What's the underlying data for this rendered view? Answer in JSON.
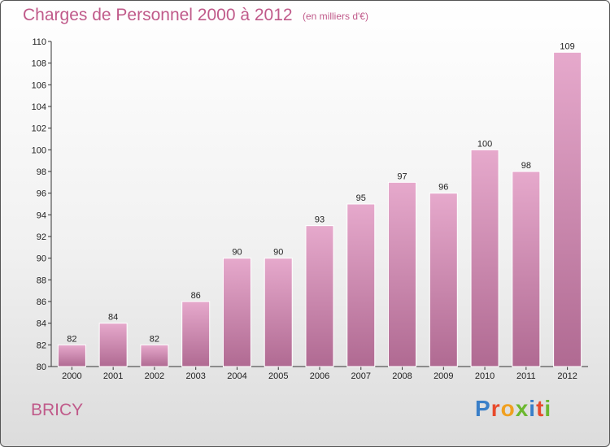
{
  "page": {
    "title": "Charges de Personnel 2000 à 2012",
    "subtitle": "(en milliers d'€)",
    "commune": "BRICY",
    "logo_text": "Proxiti",
    "logo_colors": [
      "#3a7fc8",
      "#e84a2c",
      "#f0a020",
      "#6cb82f",
      "#3a7fc8",
      "#e84a2c",
      "#6cb82f"
    ]
  },
  "chart_data": {
    "type": "bar",
    "title": "Charges de Personnel 2000 à 2012",
    "subtitle": "(en milliers d'€)",
    "categories": [
      "2000",
      "2001",
      "2002",
      "2003",
      "2004",
      "2005",
      "2006",
      "2007",
      "2008",
      "2009",
      "2010",
      "2011",
      "2012"
    ],
    "values": [
      82,
      84,
      82,
      86,
      90,
      90,
      93,
      95,
      97,
      96,
      100,
      98,
      109
    ],
    "ylim": [
      80,
      110
    ],
    "ytick_step": 2,
    "grid": false,
    "bar_color_top": "#e6a9cc",
    "bar_color_bottom": "#b06a92"
  }
}
